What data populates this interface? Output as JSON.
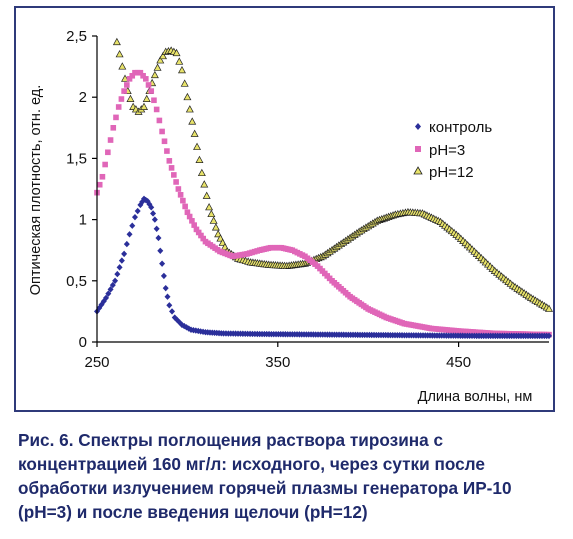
{
  "colors": {
    "frame": "#2f3a7a",
    "caption": "#1f2a6b",
    "control": "#2b2f9a",
    "ph3": "#e066b8",
    "ph12_fill": "#e8e36a",
    "ph12_stroke": "#222222",
    "axis": "#000000"
  },
  "chart_data": {
    "type": "scatter",
    "xlabel": "Длина волны, нм",
    "ylabel": "Оптическая плотность, отн. ед.",
    "xlim": [
      250,
      500
    ],
    "ylim": [
      0,
      2.5
    ],
    "xticks": [
      "250",
      "350",
      "450"
    ],
    "xtick_values": [
      250,
      350,
      450
    ],
    "yticks": [
      "0",
      "0,5",
      "1",
      "1,5",
      "2",
      "2,5"
    ],
    "ytick_values": [
      0,
      0.5,
      1,
      1.5,
      2,
      2.5
    ],
    "grid": false,
    "legend_position": "right-middle",
    "series": [
      {
        "name": "контроль",
        "marker": "diamond",
        "color": "#2b2f9a",
        "points": [
          [
            250,
            0.25
          ],
          [
            255,
            0.36
          ],
          [
            260,
            0.5
          ],
          [
            265,
            0.72
          ],
          [
            268,
            0.88
          ],
          [
            271,
            1.02
          ],
          [
            274,
            1.12
          ],
          [
            276,
            1.17
          ],
          [
            278,
            1.15
          ],
          [
            280,
            1.1
          ],
          [
            282,
            1.0
          ],
          [
            284,
            0.85
          ],
          [
            286,
            0.64
          ],
          [
            288,
            0.44
          ],
          [
            290,
            0.3
          ],
          [
            293,
            0.2
          ],
          [
            297,
            0.14
          ],
          [
            302,
            0.1
          ],
          [
            310,
            0.08
          ],
          [
            320,
            0.07
          ],
          [
            340,
            0.065
          ],
          [
            380,
            0.06
          ],
          [
            420,
            0.055
          ],
          [
            460,
            0.05
          ],
          [
            500,
            0.05
          ]
        ]
      },
      {
        "name": "pH=3",
        "marker": "square",
        "color": "#e066b8",
        "points": [
          [
            250,
            1.22
          ],
          [
            253,
            1.35
          ],
          [
            256,
            1.55
          ],
          [
            259,
            1.75
          ],
          [
            262,
            1.92
          ],
          [
            265,
            2.05
          ],
          [
            268,
            2.15
          ],
          [
            271,
            2.2
          ],
          [
            274,
            2.2
          ],
          [
            277,
            2.15
          ],
          [
            280,
            2.05
          ],
          [
            283,
            1.9
          ],
          [
            286,
            1.72
          ],
          [
            290,
            1.48
          ],
          [
            295,
            1.25
          ],
          [
            300,
            1.06
          ],
          [
            305,
            0.92
          ],
          [
            310,
            0.82
          ],
          [
            318,
            0.74
          ],
          [
            325,
            0.7
          ],
          [
            333,
            0.72
          ],
          [
            340,
            0.75
          ],
          [
            346,
            0.77
          ],
          [
            352,
            0.77
          ],
          [
            358,
            0.75
          ],
          [
            365,
            0.7
          ],
          [
            372,
            0.62
          ],
          [
            380,
            0.5
          ],
          [
            390,
            0.37
          ],
          [
            400,
            0.27
          ],
          [
            410,
            0.2
          ],
          [
            420,
            0.15
          ],
          [
            435,
            0.11
          ],
          [
            450,
            0.09
          ],
          [
            470,
            0.07
          ],
          [
            500,
            0.06
          ]
        ]
      },
      {
        "name": "pH=12",
        "marker": "triangle",
        "color": "#e8e36a",
        "points": [
          [
            261,
            2.45
          ],
          [
            264,
            2.25
          ],
          [
            267,
            2.05
          ],
          [
            270,
            1.92
          ],
          [
            273,
            1.88
          ],
          [
            276,
            1.92
          ],
          [
            279,
            2.05
          ],
          [
            282,
            2.18
          ],
          [
            285,
            2.3
          ],
          [
            288,
            2.37
          ],
          [
            291,
            2.38
          ],
          [
            294,
            2.36
          ],
          [
            297,
            2.22
          ],
          [
            300,
            2.0
          ],
          [
            304,
            1.7
          ],
          [
            308,
            1.38
          ],
          [
            312,
            1.1
          ],
          [
            317,
            0.88
          ],
          [
            322,
            0.74
          ],
          [
            328,
            0.68
          ],
          [
            335,
            0.65
          ],
          [
            345,
            0.63
          ],
          [
            355,
            0.62
          ],
          [
            365,
            0.64
          ],
          [
            375,
            0.7
          ],
          [
            385,
            0.8
          ],
          [
            395,
            0.9
          ],
          [
            405,
            0.99
          ],
          [
            415,
            1.04
          ],
          [
            422,
            1.06
          ],
          [
            430,
            1.05
          ],
          [
            440,
            0.98
          ],
          [
            450,
            0.86
          ],
          [
            460,
            0.72
          ],
          [
            470,
            0.58
          ],
          [
            480,
            0.46
          ],
          [
            490,
            0.36
          ],
          [
            500,
            0.27
          ]
        ]
      }
    ]
  },
  "caption": "Рис. 6. Спектры поглощения раствора тирозина с концентрацией 160 мг/л: исходного, через сутки после обработки излучением горячей плазмы генератора ИР-10 (pH=3) и после введения щелочи (pH=12)"
}
